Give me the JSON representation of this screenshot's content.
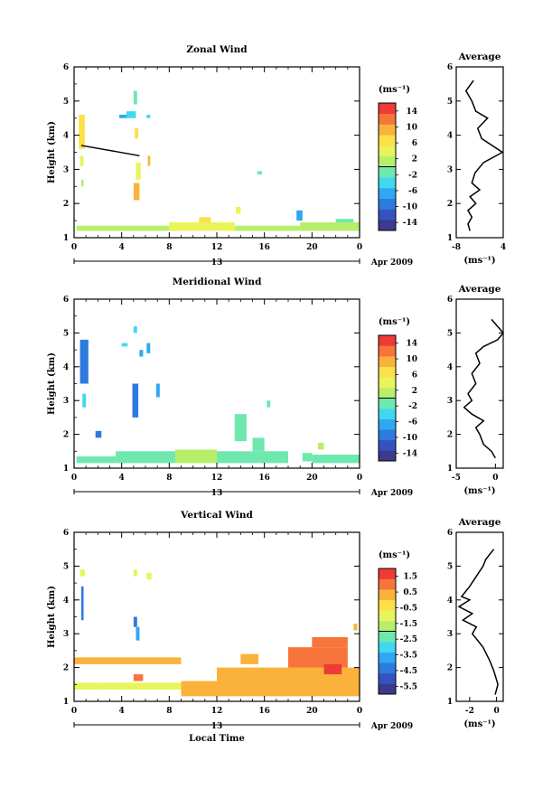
{
  "colors": {
    "wind_scale": [
      "#3c3a8a",
      "#3553c0",
      "#2f7ae0",
      "#2ea8f0",
      "#3fd8f0",
      "#6fe8b0",
      "#b7ee6a",
      "#e9f45a",
      "#fbe04a",
      "#fbb23a",
      "#f7743a",
      "#ef3b35"
    ],
    "data_fill": "#5ee6ee",
    "vertical_fill": "#f7d347"
  },
  "chart_data": [
    {
      "type": "heatmap",
      "title": "Zonal Wind",
      "ylabel": "Height (km)",
      "xlabel": "",
      "xlim": [
        0,
        24
      ],
      "ylim": [
        1,
        6
      ],
      "x_ticks": [
        "0",
        "4",
        "8",
        "12",
        "16",
        "20",
        "0"
      ],
      "y_ticks": [
        "1",
        "2",
        "3",
        "4",
        "5",
        "6"
      ],
      "date_axis": {
        "day": "13",
        "month_year": "Apr 2009"
      },
      "colorbar": {
        "unit": "(ms⁻¹)",
        "ticks": [
          "14",
          "10",
          "6",
          "2",
          "-2",
          "-6",
          "-10",
          "-14"
        ],
        "range": [
          -16,
          16
        ]
      },
      "contour_line": {
        "x": [
          0.6,
          5.5
        ],
        "y": [
          3.7,
          3.4
        ]
      },
      "cells": [
        {
          "x0": 0.4,
          "x1": 0.9,
          "y0": 4.6,
          "y1": 3.6,
          "v": 6
        },
        {
          "x0": 0.5,
          "x1": 0.8,
          "y0": 3.4,
          "y1": 3.1,
          "v": 4
        },
        {
          "x0": 0.6,
          "x1": 0.8,
          "y0": 2.7,
          "y1": 2.5,
          "v": 0
        },
        {
          "x0": 3.8,
          "x1": 4.4,
          "y0": 4.6,
          "y1": 4.5,
          "v": -6
        },
        {
          "x0": 4.4,
          "x1": 5.2,
          "y0": 4.7,
          "y1": 4.5,
          "v": -4
        },
        {
          "x0": 5.0,
          "x1": 5.3,
          "y0": 5.3,
          "y1": 4.9,
          "v": -2
        },
        {
          "x0": 5.1,
          "x1": 5.4,
          "y0": 4.2,
          "y1": 3.9,
          "v": 6
        },
        {
          "x0": 5.0,
          "x1": 5.5,
          "y0": 2.6,
          "y1": 2.1,
          "v": 8
        },
        {
          "x0": 5.2,
          "x1": 5.6,
          "y0": 3.2,
          "y1": 2.7,
          "v": 4
        },
        {
          "x0": 6.1,
          "x1": 6.4,
          "y0": 4.6,
          "y1": 4.5,
          "v": -4
        },
        {
          "x0": 6.2,
          "x1": 6.4,
          "y0": 3.4,
          "y1": 3.1,
          "v": 8
        },
        {
          "x0": 15.4,
          "x1": 15.8,
          "y0": 2.95,
          "y1": 2.85,
          "v": -2
        },
        {
          "x0": 18.7,
          "x1": 19.2,
          "y0": 1.8,
          "y1": 1.5,
          "v": -6
        },
        {
          "x0": 13.6,
          "x1": 14.0,
          "y0": 1.9,
          "y1": 1.7,
          "v": 4
        },
        {
          "x0": 0.2,
          "x1": 8.0,
          "y0": 1.35,
          "y1": 1.2,
          "v": 2
        },
        {
          "x0": 8.0,
          "x1": 13.5,
          "y0": 1.45,
          "y1": 1.2,
          "v": 4
        },
        {
          "x0": 13.5,
          "x1": 19.0,
          "y0": 1.35,
          "y1": 1.2,
          "v": 0
        },
        {
          "x0": 19.0,
          "x1": 24.0,
          "y0": 1.45,
          "y1": 1.2,
          "v": 2
        },
        {
          "x0": 10.5,
          "x1": 11.5,
          "y0": 1.6,
          "y1": 1.45,
          "v": 6
        },
        {
          "x0": 22.0,
          "x1": 23.5,
          "y0": 1.55,
          "y1": 1.45,
          "v": -2
        }
      ],
      "profile": {
        "title": "Average",
        "xlabel": "(ms⁻¹)",
        "xlim": [
          -8,
          4
        ],
        "x_ticks": [
          "-8",
          "4"
        ],
        "points": [
          [
            -3.6,
            5.6
          ],
          [
            -5.5,
            5.3
          ],
          [
            -4.0,
            5.0
          ],
          [
            -3.0,
            4.7
          ],
          [
            0.0,
            4.5
          ],
          [
            -2.5,
            4.2
          ],
          [
            -1.5,
            3.9
          ],
          [
            3.8,
            3.5
          ],
          [
            -1.0,
            3.2
          ],
          [
            -3.2,
            2.9
          ],
          [
            -4.0,
            2.6
          ],
          [
            -2.0,
            2.4
          ],
          [
            -4.5,
            2.2
          ],
          [
            -3.0,
            2.0
          ],
          [
            -5.0,
            1.8
          ],
          [
            -4.0,
            1.6
          ],
          [
            -5.0,
            1.4
          ],
          [
            -4.5,
            1.2
          ]
        ]
      }
    },
    {
      "type": "heatmap",
      "title": "Meridional Wind",
      "ylabel": "Height (km)",
      "xlabel": "",
      "xlim": [
        0,
        24
      ],
      "ylim": [
        1,
        6
      ],
      "x_ticks": [
        "0",
        "4",
        "8",
        "12",
        "16",
        "20",
        "0"
      ],
      "y_ticks": [
        "1",
        "2",
        "3",
        "4",
        "5",
        "6"
      ],
      "date_axis": {
        "day": "13",
        "month_year": "Apr 2009"
      },
      "colorbar": {
        "unit": "(ms⁻¹)",
        "ticks": [
          "14",
          "10",
          "6",
          "2",
          "-2",
          "-6",
          "-10",
          "-14"
        ],
        "range": [
          -16,
          16
        ]
      },
      "cells": [
        {
          "x0": 0.5,
          "x1": 1.2,
          "y0": 4.8,
          "y1": 3.5,
          "v": -10
        },
        {
          "x0": 0.7,
          "x1": 1.0,
          "y0": 3.2,
          "y1": 2.8,
          "v": -4
        },
        {
          "x0": 1.8,
          "x1": 2.3,
          "y0": 2.1,
          "y1": 1.9,
          "v": -10
        },
        {
          "x0": 4.0,
          "x1": 4.5,
          "y0": 4.7,
          "y1": 4.6,
          "v": -4
        },
        {
          "x0": 5.0,
          "x1": 5.3,
          "y0": 5.2,
          "y1": 5.0,
          "v": -4
        },
        {
          "x0": 4.9,
          "x1": 5.4,
          "y0": 3.5,
          "y1": 2.5,
          "v": -10
        },
        {
          "x0": 6.1,
          "x1": 6.4,
          "y0": 4.7,
          "y1": 4.4,
          "v": -6
        },
        {
          "x0": 5.5,
          "x1": 5.8,
          "y0": 4.5,
          "y1": 4.3,
          "v": -6
        },
        {
          "x0": 6.9,
          "x1": 7.2,
          "y0": 3.5,
          "y1": 3.1,
          "v": -6
        },
        {
          "x0": 0.2,
          "x1": 3.5,
          "y0": 1.35,
          "y1": 1.15,
          "v": -2
        },
        {
          "x0": 3.5,
          "x1": 8.5,
          "y0": 1.5,
          "y1": 1.15,
          "v": -2
        },
        {
          "x0": 8.5,
          "x1": 12.0,
          "y0": 1.55,
          "y1": 1.15,
          "v": 0
        },
        {
          "x0": 12.0,
          "x1": 18.0,
          "y0": 1.5,
          "y1": 1.15,
          "v": -2
        },
        {
          "x0": 13.5,
          "x1": 14.5,
          "y0": 2.6,
          "y1": 1.8,
          "v": -2
        },
        {
          "x0": 15.0,
          "x1": 16.0,
          "y0": 1.9,
          "y1": 1.5,
          "v": -2
        },
        {
          "x0": 16.2,
          "x1": 16.5,
          "y0": 3.0,
          "y1": 2.8,
          "v": -2
        },
        {
          "x0": 19.2,
          "x1": 20.0,
          "y0": 1.45,
          "y1": 1.2,
          "v": -2
        },
        {
          "x0": 20.0,
          "x1": 24.0,
          "y0": 1.4,
          "y1": 1.15,
          "v": -2
        },
        {
          "x0": 20.5,
          "x1": 21.0,
          "y0": 1.75,
          "y1": 1.55,
          "v": 2
        }
      ],
      "profile": {
        "title": "Average",
        "xlabel": "(ms⁻¹)",
        "xlim": [
          -5,
          1
        ],
        "x_ticks": [
          "-5",
          "0"
        ],
        "points": [
          [
            -0.5,
            5.4
          ],
          [
            1.0,
            5.0
          ],
          [
            0.3,
            4.8
          ],
          [
            -1.5,
            4.6
          ],
          [
            -2.5,
            4.4
          ],
          [
            -2.0,
            4.1
          ],
          [
            -3.0,
            3.8
          ],
          [
            -2.5,
            3.5
          ],
          [
            -3.5,
            3.2
          ],
          [
            -3.0,
            3.0
          ],
          [
            -4.0,
            2.8
          ],
          [
            -3.0,
            2.6
          ],
          [
            -1.5,
            2.4
          ],
          [
            -2.5,
            2.2
          ],
          [
            -2.0,
            2.0
          ],
          [
            -1.5,
            1.7
          ],
          [
            -0.5,
            1.5
          ],
          [
            0.0,
            1.3
          ]
        ]
      }
    },
    {
      "type": "heatmap",
      "title": "Vertical Wind",
      "ylabel": "Height (km)",
      "xlabel": "Local Time",
      "xlim": [
        0,
        24
      ],
      "ylim": [
        1,
        6
      ],
      "x_ticks": [
        "0",
        "4",
        "8",
        "12",
        "16",
        "20",
        "0"
      ],
      "y_ticks": [
        "1",
        "2",
        "3",
        "4",
        "5",
        "6"
      ],
      "date_axis": {
        "day": "13",
        "month_year": "Apr 2009"
      },
      "colorbar": {
        "unit": "(ms⁻¹)",
        "ticks": [
          "1.5",
          "0.5",
          "-0.5",
          "-1.5",
          "-2.5",
          "-3.5",
          "-4.5",
          "-5.5"
        ],
        "range": [
          -6,
          2
        ]
      },
      "cells": [
        {
          "x0": 0.5,
          "x1": 0.9,
          "y0": 4.9,
          "y1": 4.7,
          "v": -1.2
        },
        {
          "x0": 0.6,
          "x1": 0.8,
          "y0": 4.4,
          "y1": 3.4,
          "v": -4.5
        },
        {
          "x0": 5.0,
          "x1": 5.3,
          "y0": 3.5,
          "y1": 3.2,
          "v": -4.5
        },
        {
          "x0": 5.2,
          "x1": 5.5,
          "y0": 3.2,
          "y1": 2.8,
          "v": -3.5
        },
        {
          "x0": 5.0,
          "x1": 5.3,
          "y0": 4.9,
          "y1": 4.7,
          "v": -1.2
        },
        {
          "x0": 6.1,
          "x1": 6.5,
          "y0": 4.8,
          "y1": 4.6,
          "v": -1.2
        },
        {
          "x0": 0.0,
          "x1": 9.0,
          "y0": 2.3,
          "y1": 2.1,
          "v": 0.2
        },
        {
          "x0": 0.0,
          "x1": 2.0,
          "y0": 1.55,
          "y1": 1.35,
          "v": -1.0
        },
        {
          "x0": 2.0,
          "x1": 9.0,
          "y0": 1.55,
          "y1": 1.35,
          "v": -0.8
        },
        {
          "x0": 5.0,
          "x1": 5.8,
          "y0": 1.8,
          "y1": 1.6,
          "v": 1.2
        },
        {
          "x0": 9.0,
          "x1": 24.0,
          "y0": 1.6,
          "y1": 1.15,
          "v": 0.4
        },
        {
          "x0": 12.0,
          "x1": 24.0,
          "y0": 2.0,
          "y1": 1.6,
          "v": 0.6
        },
        {
          "x0": 18.0,
          "x1": 23.0,
          "y0": 2.6,
          "y1": 2.0,
          "v": 0.9
        },
        {
          "x0": 20.0,
          "x1": 23.0,
          "y0": 2.9,
          "y1": 2.6,
          "v": 0.7
        },
        {
          "x0": 23.5,
          "x1": 23.8,
          "y0": 3.3,
          "y1": 3.1,
          "v": 0.5
        },
        {
          "x0": 14.0,
          "x1": 15.5,
          "y0": 2.4,
          "y1": 2.1,
          "v": 0.4
        },
        {
          "x0": 21.0,
          "x1": 22.5,
          "y0": 2.1,
          "y1": 1.8,
          "v": 1.4
        }
      ],
      "profile": {
        "title": "Average",
        "xlabel": "(ms⁻¹)",
        "xlim": [
          -3,
          0.5
        ],
        "x_ticks": [
          "-2",
          "0"
        ],
        "points": [
          [
            -0.2,
            5.5
          ],
          [
            -0.8,
            5.2
          ],
          [
            -1.0,
            5.0
          ],
          [
            -1.5,
            4.7
          ],
          [
            -2.0,
            4.4
          ],
          [
            -2.6,
            4.1
          ],
          [
            -2.0,
            4.0
          ],
          [
            -2.8,
            3.8
          ],
          [
            -1.8,
            3.6
          ],
          [
            -2.5,
            3.4
          ],
          [
            -1.5,
            3.2
          ],
          [
            -1.8,
            3.0
          ],
          [
            -1.0,
            2.6
          ],
          [
            -0.5,
            2.2
          ],
          [
            -0.2,
            1.9
          ],
          [
            0.1,
            1.5
          ],
          [
            -0.1,
            1.2
          ]
        ]
      }
    }
  ]
}
